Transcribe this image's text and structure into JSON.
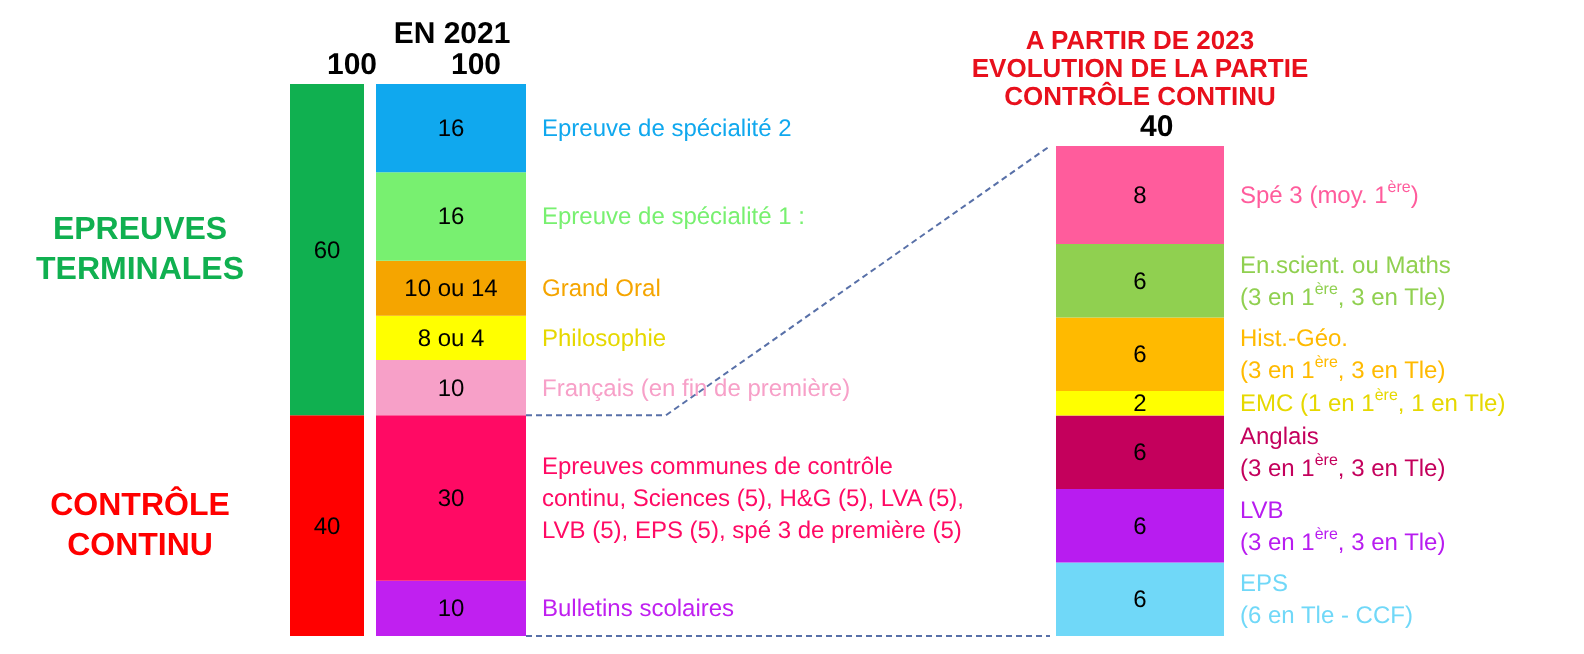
{
  "chart_data": [
    {
      "type": "bar",
      "stacked": true,
      "categories": [
        null
      ],
      "data_labels": true,
      "totals": [
        "100"
      ],
      "series": [
        {
          "name": "CONTRÔLE\nCONTINU",
          "color": "#ff0000",
          "values": [
            40
          ]
        },
        {
          "name": "EPREUVES\nTERMINALES",
          "color": "#10b050",
          "values": [
            60
          ]
        }
      ]
    },
    {
      "type": "bar",
      "stacked": true,
      "title": "EN 2021",
      "categories": [
        null
      ],
      "data_labels": true,
      "totals": [
        "100"
      ],
      "series": [
        {
          "name": "Bulletins scolaires",
          "color": "#c020f0",
          "values": [
            10
          ]
        },
        {
          "name": "Epreuves communes de contrôle\ncontinu, Sciences (5), H&G (5), LVA (5),\nLVB (5), EPS (5), spé 3 de première (5)",
          "color": "#ff0a64",
          "values": [
            30
          ]
        },
        {
          "name": "Français (en fin de première)",
          "color": "#f7a0c8",
          "values": [
            10
          ]
        },
        {
          "name": "Philosophie",
          "color": "#ffff00",
          "values": [
            8
          ],
          "value_labels": [
            "8 ou 4"
          ]
        },
        {
          "name": "Grand Oral",
          "color": "#f5a500",
          "values": [
            10
          ],
          "value_labels": [
            "10 ou 14"
          ]
        },
        {
          "name": "Epreuve de spécialité 1 :",
          "color": "#78f070",
          "values": [
            16
          ]
        },
        {
          "name": "Epreuve de spécialité 2",
          "color": "#10a8ee",
          "values": [
            16
          ]
        }
      ]
    },
    {
      "type": "bar",
      "stacked": true,
      "title": "A PARTIR DE 2023\nEVOLUTION DE LA PARTIE\nCONTRÔLE CONTINU",
      "categories": [
        null
      ],
      "data_labels": true,
      "totals": [
        "40"
      ],
      "series": [
        {
          "name": "EPS\n(6 en Tle - CCF)",
          "color": "#70d8f8",
          "values": [
            6
          ]
        },
        {
          "name": "LVB\n(3 en 1$^{ère}$, 3 en Tle)",
          "color": "#b81cf0",
          "values": [
            6
          ]
        },
        {
          "name": "Anglais\n(3 en 1$^{ère}$, 3 en Tle)",
          "color": "#c4005c",
          "values": [
            6
          ]
        },
        {
          "name": "EMC (1 en 1$^{ère}$, 1 en Tle)",
          "color": "#ffff00",
          "values": [
            2
          ]
        },
        {
          "name": "Hist.-Géo.\n(3 en 1$^{ère}$, 3 en Tle)",
          "color": "#ffba00",
          "values": [
            6
          ]
        },
        {
          "name": "En.scient. ou Maths\n(3 en 1$^{ère}$, 3 en Tle)",
          "color": "#90d050",
          "values": [
            6
          ]
        },
        {
          "name": "Spé 3 (moy. 1$^{ère}$)",
          "color": "#ff5c9c",
          "values": [
            8
          ]
        }
      ]
    }
  ]
}
